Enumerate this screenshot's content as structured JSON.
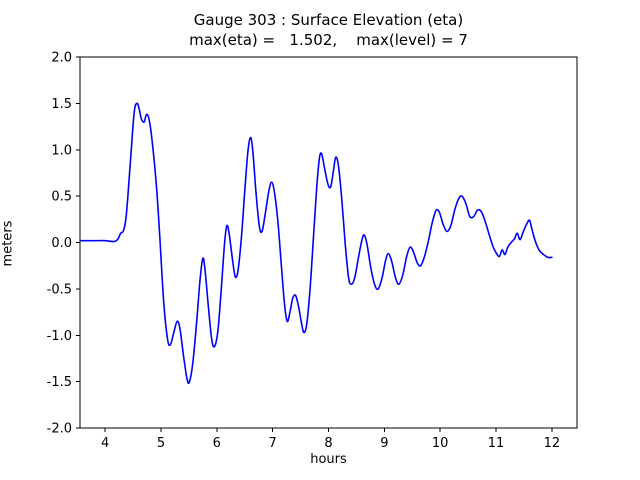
{
  "title": "Gauge 303 : Surface Elevation (eta)",
  "subtitle": "max(eta) =   1.502,    max(level) = 7",
  "chart_data": {
    "type": "line",
    "title": "Gauge 303 : Surface Elevation (eta)",
    "subtitle": "max(eta) =   1.502,    max(level) = 7",
    "xlabel": "hours",
    "ylabel": "meters",
    "xlim": [
      3.55,
      12.45
    ],
    "ylim": [
      -2.0,
      2.0
    ],
    "xticks": [
      4,
      5,
      6,
      7,
      8,
      9,
      10,
      11,
      12
    ],
    "yticks": [
      -2.0,
      -1.5,
      -1.0,
      -0.5,
      0.0,
      0.5,
      1.0,
      1.5,
      2.0
    ],
    "grid": false,
    "legend": "none",
    "line_color": "#0000ff",
    "line_width": 1.6,
    "max_eta": 1.502,
    "max_level": 7,
    "series": [
      {
        "name": "eta",
        "points": [
          [
            3.57,
            0.02
          ],
          [
            3.8,
            0.02
          ],
          [
            4.0,
            0.02
          ],
          [
            4.15,
            0.01
          ],
          [
            4.22,
            0.03
          ],
          [
            4.28,
            0.1
          ],
          [
            4.33,
            0.13
          ],
          [
            4.38,
            0.3
          ],
          [
            4.45,
            0.85
          ],
          [
            4.52,
            1.4
          ],
          [
            4.57,
            1.5
          ],
          [
            4.61,
            1.44
          ],
          [
            4.65,
            1.33
          ],
          [
            4.7,
            1.3
          ],
          [
            4.74,
            1.38
          ],
          [
            4.79,
            1.32
          ],
          [
            4.85,
            1.05
          ],
          [
            4.92,
            0.6
          ],
          [
            4.98,
            0.05
          ],
          [
            5.05,
            -0.65
          ],
          [
            5.12,
            -1.05
          ],
          [
            5.17,
            -1.1
          ],
          [
            5.23,
            -0.97
          ],
          [
            5.29,
            -0.85
          ],
          [
            5.34,
            -0.93
          ],
          [
            5.41,
            -1.25
          ],
          [
            5.47,
            -1.48
          ],
          [
            5.51,
            -1.5
          ],
          [
            5.57,
            -1.3
          ],
          [
            5.64,
            -0.85
          ],
          [
            5.7,
            -0.4
          ],
          [
            5.75,
            -0.17
          ],
          [
            5.79,
            -0.3
          ],
          [
            5.85,
            -0.7
          ],
          [
            5.91,
            -1.05
          ],
          [
            5.96,
            -1.12
          ],
          [
            6.02,
            -0.95
          ],
          [
            6.08,
            -0.5
          ],
          [
            6.14,
            0.0
          ],
          [
            6.18,
            0.18
          ],
          [
            6.22,
            0.1
          ],
          [
            6.28,
            -0.18
          ],
          [
            6.33,
            -0.37
          ],
          [
            6.38,
            -0.3
          ],
          [
            6.44,
            0.05
          ],
          [
            6.5,
            0.55
          ],
          [
            6.56,
            1.0
          ],
          [
            6.61,
            1.13
          ],
          [
            6.65,
            0.95
          ],
          [
            6.7,
            0.55
          ],
          [
            6.76,
            0.18
          ],
          [
            6.81,
            0.12
          ],
          [
            6.87,
            0.32
          ],
          [
            6.93,
            0.55
          ],
          [
            6.98,
            0.65
          ],
          [
            7.03,
            0.55
          ],
          [
            7.09,
            0.25
          ],
          [
            7.15,
            -0.2
          ],
          [
            7.21,
            -0.65
          ],
          [
            7.26,
            -0.85
          ],
          [
            7.31,
            -0.75
          ],
          [
            7.36,
            -0.6
          ],
          [
            7.41,
            -0.57
          ],
          [
            7.46,
            -0.68
          ],
          [
            7.52,
            -0.88
          ],
          [
            7.56,
            -0.97
          ],
          [
            7.61,
            -0.88
          ],
          [
            7.67,
            -0.5
          ],
          [
            7.73,
            0.05
          ],
          [
            7.79,
            0.6
          ],
          [
            7.84,
            0.92
          ],
          [
            7.88,
            0.95
          ],
          [
            7.93,
            0.8
          ],
          [
            7.99,
            0.63
          ],
          [
            8.04,
            0.6
          ],
          [
            8.09,
            0.78
          ],
          [
            8.13,
            0.92
          ],
          [
            8.18,
            0.82
          ],
          [
            8.24,
            0.45
          ],
          [
            8.3,
            -0.02
          ],
          [
            8.36,
            -0.38
          ],
          [
            8.41,
            -0.45
          ],
          [
            8.47,
            -0.38
          ],
          [
            8.54,
            -0.15
          ],
          [
            8.6,
            0.03
          ],
          [
            8.64,
            0.08
          ],
          [
            8.69,
            -0.02
          ],
          [
            8.76,
            -0.28
          ],
          [
            8.83,
            -0.46
          ],
          [
            8.89,
            -0.5
          ],
          [
            8.96,
            -0.38
          ],
          [
            9.02,
            -0.2
          ],
          [
            9.07,
            -0.12
          ],
          [
            9.13,
            -0.2
          ],
          [
            9.2,
            -0.38
          ],
          [
            9.26,
            -0.45
          ],
          [
            9.33,
            -0.35
          ],
          [
            9.4,
            -0.15
          ],
          [
            9.46,
            -0.05
          ],
          [
            9.52,
            -0.1
          ],
          [
            9.59,
            -0.22
          ],
          [
            9.65,
            -0.25
          ],
          [
            9.72,
            -0.15
          ],
          [
            9.79,
            0.02
          ],
          [
            9.86,
            0.22
          ],
          [
            9.93,
            0.35
          ],
          [
            9.99,
            0.32
          ],
          [
            10.05,
            0.2
          ],
          [
            10.12,
            0.12
          ],
          [
            10.19,
            0.18
          ],
          [
            10.26,
            0.35
          ],
          [
            10.33,
            0.47
          ],
          [
            10.39,
            0.5
          ],
          [
            10.46,
            0.42
          ],
          [
            10.53,
            0.28
          ],
          [
            10.6,
            0.28
          ],
          [
            10.67,
            0.35
          ],
          [
            10.74,
            0.33
          ],
          [
            10.81,
            0.22
          ],
          [
            10.88,
            0.08
          ],
          [
            10.95,
            -0.05
          ],
          [
            11.01,
            -0.12
          ],
          [
            11.06,
            -0.15
          ],
          [
            11.11,
            -0.08
          ],
          [
            11.16,
            -0.13
          ],
          [
            11.21,
            -0.05
          ],
          [
            11.27,
            0.0
          ],
          [
            11.33,
            0.04
          ],
          [
            11.38,
            0.1
          ],
          [
            11.43,
            0.03
          ],
          [
            11.49,
            0.12
          ],
          [
            11.55,
            0.2
          ],
          [
            11.6,
            0.24
          ],
          [
            11.64,
            0.15
          ],
          [
            11.7,
            0.02
          ],
          [
            11.77,
            -0.08
          ],
          [
            11.85,
            -0.13
          ],
          [
            11.93,
            -0.16
          ],
          [
            12.0,
            -0.16
          ]
        ]
      }
    ]
  }
}
